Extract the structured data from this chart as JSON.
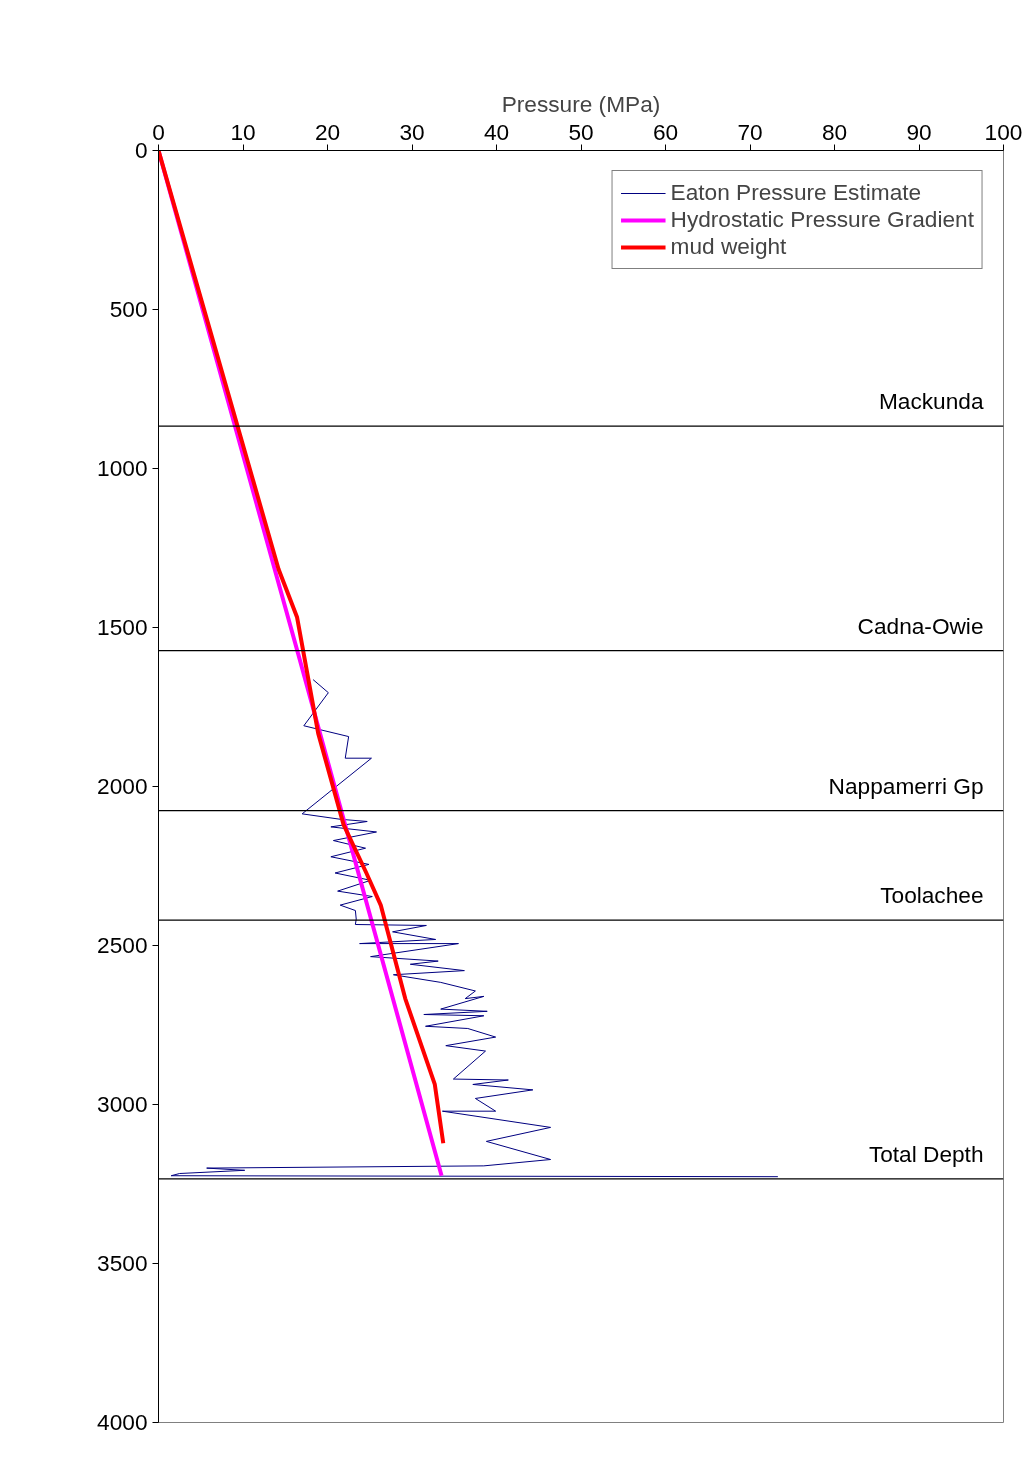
{
  "chart_data": {
    "type": "line",
    "xlabel": "Pressure (MPa)",
    "xlim": [
      0,
      100
    ],
    "xticks": [
      0,
      10,
      20,
      30,
      40,
      50,
      60,
      70,
      80,
      90,
      100
    ],
    "ylim": [
      4000,
      0
    ],
    "yticks": [
      0,
      500,
      1000,
      1500,
      2000,
      2500,
      3000,
      3500,
      4000
    ],
    "grid": false,
    "legend": "top right",
    "series": [
      {
        "name": "Eaton Pressure Estimate",
        "color": "#000080",
        "x": [
          18.3,
          20.1,
          17.2,
          22.5,
          22.1,
          25.2,
          17.0,
          21.5,
          24.7,
          20.4,
          25.8,
          20.7,
          24.5,
          20.4,
          24.9,
          20.9,
          25.1,
          21.2,
          25.3,
          21.5,
          23.3,
          23.4,
          23.3,
          31.7,
          27.7,
          32.8,
          23.8,
          35.5,
          25.1,
          33.1,
          29.8,
          36.2,
          27.8,
          33.4,
          37.5,
          36.3,
          38.5,
          33.4,
          38.9,
          31.4,
          38.5,
          31.6,
          36.6,
          39.9,
          34.0,
          38.7,
          34.9,
          41.4,
          37.2,
          44.3,
          37.5,
          39.9,
          33.6,
          46.4,
          38.8,
          46.4,
          38.5,
          5.7,
          10.2,
          2.5,
          1.5,
          73.3
        ],
        "values": [
          1664,
          1705,
          1809,
          1843,
          1911,
          1911,
          2086,
          2103,
          2110,
          2127,
          2143,
          2170,
          2194,
          2221,
          2245,
          2272,
          2295,
          2329,
          2346,
          2373,
          2390,
          2417,
          2434,
          2437,
          2457,
          2481,
          2494,
          2494,
          2535,
          2549,
          2559,
          2579,
          2592,
          2616,
          2643,
          2667,
          2660,
          2700,
          2707,
          2717,
          2721,
          2754,
          2761,
          2788,
          2815,
          2832,
          2920,
          2923,
          2937,
          2954,
          2981,
          3021,
          3021,
          3072,
          3116,
          3173,
          3193,
          3200,
          3207,
          3217,
          3224,
          3227
        ]
      },
      {
        "name": "Hydrostatic Pressure Gradient",
        "color": "#ff00ff",
        "x": [
          0,
          16.5,
          33.5
        ],
        "values": [
          0,
          1580,
          3224
        ]
      },
      {
        "name": "mud weight",
        "color": "#ff0000",
        "x": [
          0,
          14.2,
          16.4,
          18.9,
          21.9,
          24.6,
          26.3,
          29.2,
          32.7,
          33.7
        ],
        "values": [
          0,
          1316,
          1468,
          1833,
          2120,
          2272,
          2373,
          2667,
          2937,
          3122
        ]
      }
    ],
    "ref_lines": [
      {
        "axis": "y",
        "value": 867,
        "label": "Mackunda"
      },
      {
        "axis": "y",
        "value": 1573,
        "label": "Cadna-Owie"
      },
      {
        "axis": "y",
        "value": 2076,
        "label": "Nappamerri Gp"
      },
      {
        "axis": "y",
        "value": 2420,
        "label": "Toolachee"
      },
      {
        "axis": "y",
        "value": 3234,
        "label": "Total Depth"
      }
    ]
  }
}
